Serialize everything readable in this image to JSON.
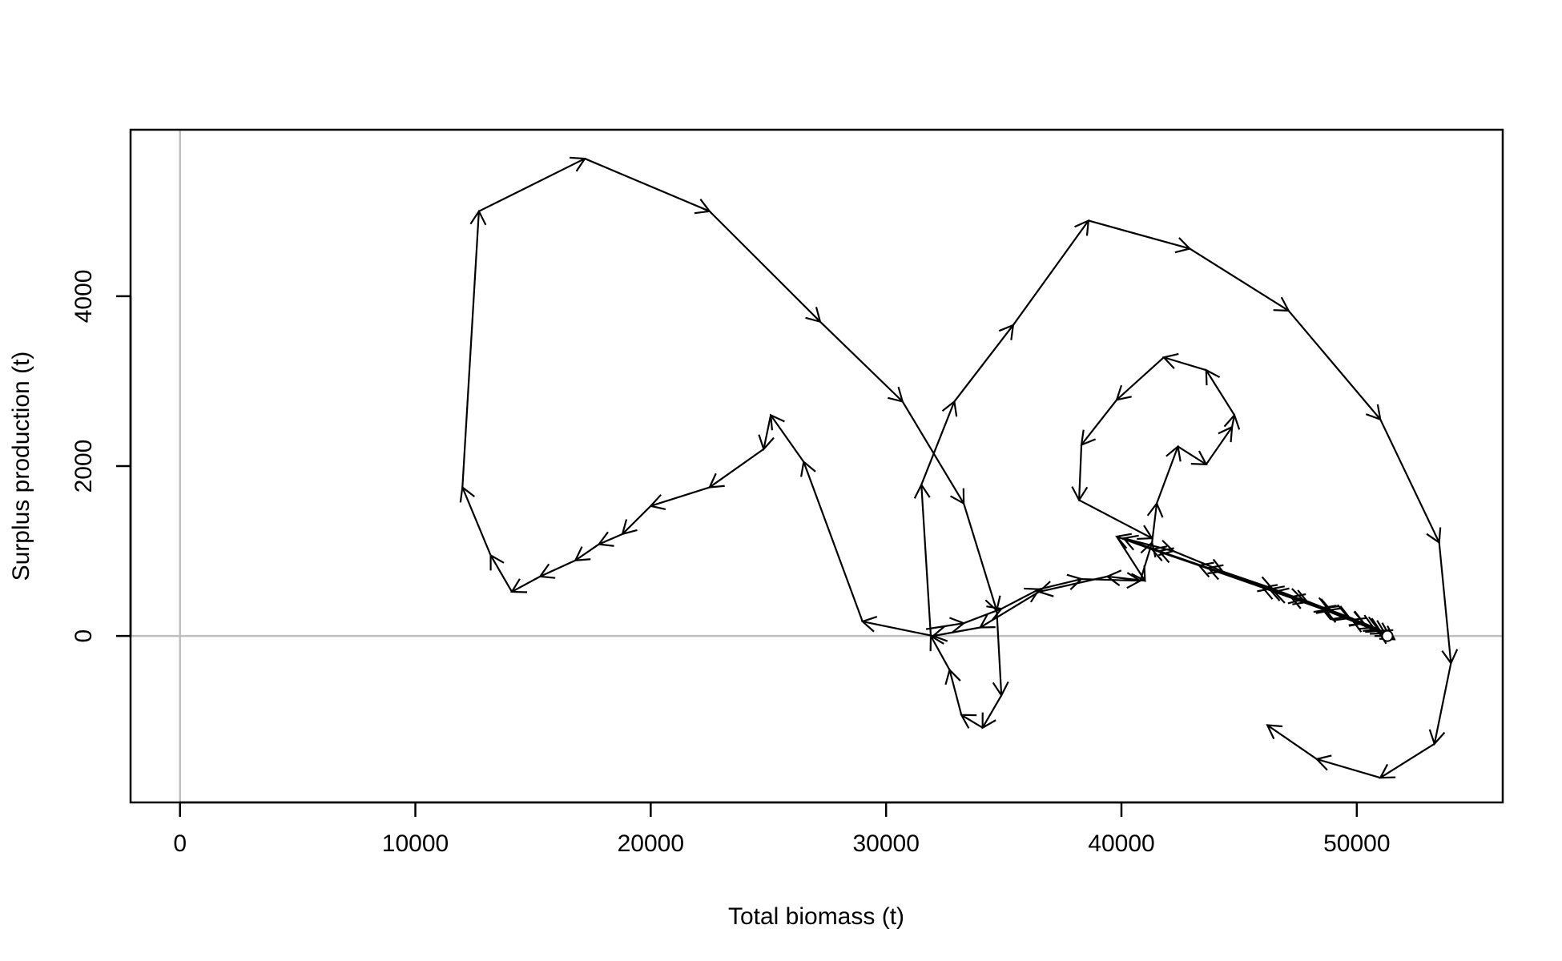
{
  "chart_data": {
    "type": "line",
    "title": "",
    "xlabel": "Total biomass (t)",
    "ylabel": "Surplus production (t)",
    "xlim": [
      -2100,
      56200
    ],
    "ylim": [
      -1960,
      5960
    ],
    "x_ticks": [
      0,
      10000,
      20000,
      30000,
      40000,
      50000
    ],
    "y_ticks": [
      0,
      2000,
      4000
    ],
    "reference_lines": {
      "x": 0,
      "y": 0,
      "color": "#bebebe"
    },
    "grid": false,
    "legend": "none",
    "line_color": "#000000",
    "start_marker": {
      "x": 51300,
      "y": 0
    },
    "series": [
      {
        "points": [
          [
            51300,
            0
          ],
          [
            48600,
            330
          ],
          [
            46300,
            550
          ],
          [
            43700,
            800
          ],
          [
            41600,
            1000
          ],
          [
            40100,
            1150
          ],
          [
            42200,
            1000
          ],
          [
            44300,
            760
          ],
          [
            46400,
            560
          ],
          [
            47900,
            400
          ],
          [
            48900,
            300
          ],
          [
            49700,
            210
          ],
          [
            50300,
            150
          ],
          [
            50700,
            100
          ],
          [
            51000,
            60
          ],
          [
            51200,
            30
          ],
          [
            51600,
            -40
          ],
          [
            50900,
            60
          ],
          [
            49800,
            190
          ],
          [
            48500,
            330
          ],
          [
            47200,
            460
          ],
          [
            46500,
            520
          ],
          [
            47700,
            430
          ],
          [
            48800,
            310
          ],
          [
            49600,
            230
          ],
          [
            50300,
            150
          ],
          [
            50900,
            80
          ],
          [
            51400,
            0
          ],
          [
            48700,
            300
          ],
          [
            46000,
            570
          ],
          [
            43300,
            830
          ],
          [
            41300,
            1020
          ],
          [
            39800,
            1170
          ],
          [
            41000,
            650
          ],
          [
            39400,
            700
          ],
          [
            36500,
            520
          ],
          [
            34000,
            100
          ],
          [
            32000,
            0
          ],
          [
            29000,
            170
          ],
          [
            26500,
            2050
          ],
          [
            25100,
            2600
          ],
          [
            24800,
            2200
          ],
          [
            22500,
            1750
          ],
          [
            20000,
            1530
          ],
          [
            18800,
            1200
          ],
          [
            17800,
            1080
          ],
          [
            16800,
            890
          ],
          [
            15300,
            700
          ],
          [
            14100,
            520
          ],
          [
            13200,
            950
          ],
          [
            12000,
            1750
          ],
          [
            12700,
            5000
          ],
          [
            17200,
            5620
          ],
          [
            22500,
            5000
          ],
          [
            27200,
            3700
          ],
          [
            30700,
            2760
          ],
          [
            33300,
            1560
          ],
          [
            34700,
            300
          ],
          [
            34900,
            -700
          ],
          [
            34100,
            -1080
          ],
          [
            33200,
            -930
          ],
          [
            32700,
            -400
          ],
          [
            31900,
            0
          ],
          [
            31500,
            1780
          ],
          [
            32900,
            2760
          ],
          [
            35400,
            3660
          ],
          [
            38600,
            4890
          ],
          [
            42900,
            4560
          ],
          [
            47100,
            3830
          ],
          [
            51000,
            2550
          ],
          [
            53500,
            1100
          ],
          [
            54000,
            -320
          ],
          [
            53300,
            -1270
          ],
          [
            51000,
            -1670
          ],
          [
            48300,
            -1450
          ],
          [
            46200,
            -1050
          ]
        ]
      },
      {
        "points": [
          [
            31700,
            80
          ],
          [
            33300,
            150
          ],
          [
            34900,
            320
          ],
          [
            36500,
            550
          ],
          [
            38300,
            670
          ],
          [
            40800,
            650
          ],
          [
            41300,
            1100
          ],
          [
            41500,
            1560
          ],
          [
            42400,
            2230
          ],
          [
            43600,
            2020
          ],
          [
            44700,
            2460
          ],
          [
            44800,
            2600
          ],
          [
            43600,
            3130
          ],
          [
            41800,
            3280
          ],
          [
            39800,
            2780
          ],
          [
            38300,
            2250
          ],
          [
            38200,
            1600
          ],
          [
            41300,
            1150
          ]
        ]
      }
    ]
  }
}
